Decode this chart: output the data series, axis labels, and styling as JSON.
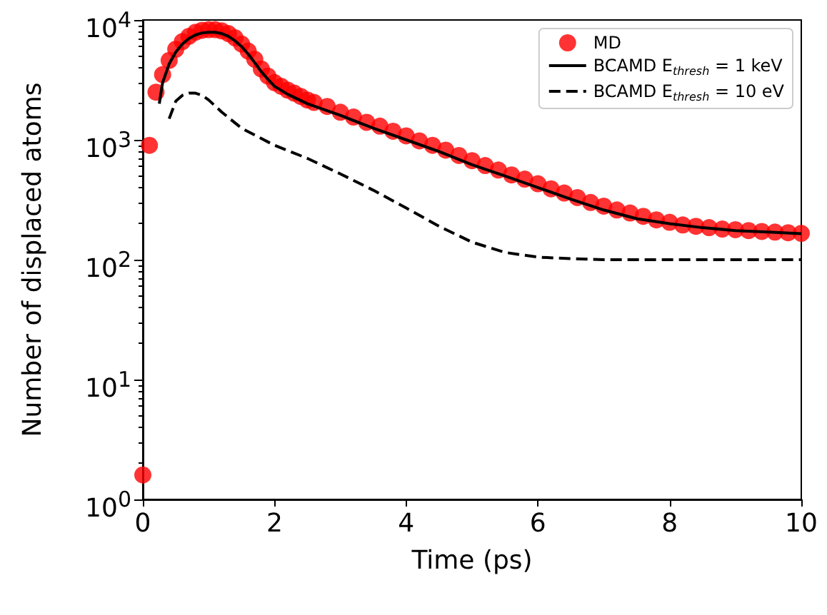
{
  "chart_data": {
    "type": "line",
    "xlabel": "Time (ps)",
    "ylabel": "Number of displaced atoms",
    "log": "y",
    "legend": "top right",
    "grid": false,
    "xlim": [
      0,
      10
    ],
    "xticks": [
      0,
      2,
      4,
      6,
      8,
      10
    ],
    "ylim": [
      1,
      10000
    ],
    "yticks": [
      {
        "value": 1,
        "label": "10$^{0}$"
      },
      {
        "value": 10,
        "label": "10$^{1}$"
      },
      {
        "value": 100,
        "label": "10$^{2}$"
      },
      {
        "value": 1000,
        "label": "10$^{3}$"
      },
      {
        "value": 10000,
        "label": "10$^{4}$"
      }
    ],
    "series": [
      {
        "name": "MD",
        "type": "scatter",
        "marker": "circle",
        "color": "#ff0000",
        "x": [
          0,
          0.1,
          0.2,
          0.3,
          0.4,
          0.5,
          0.6,
          0.7,
          0.8,
          0.9,
          1.0,
          1.1,
          1.2,
          1.3,
          1.4,
          1.5,
          1.6,
          1.7,
          1.8,
          1.9,
          2.0,
          2.1,
          2.2,
          2.3,
          2.4,
          2.5,
          2.6,
          2.8,
          3.0,
          3.2,
          3.4,
          3.6,
          3.8,
          4.0,
          4.2,
          4.4,
          4.6,
          4.8,
          5.0,
          5.2,
          5.4,
          5.6,
          5.8,
          6.0,
          6.2,
          6.4,
          6.6,
          6.8,
          7.0,
          7.2,
          7.4,
          7.6,
          7.8,
          8.0,
          8.2,
          8.4,
          8.6,
          8.8,
          9.0,
          9.2,
          9.4,
          9.6,
          9.8,
          10.0
        ],
        "values": [
          1.6,
          900,
          2500,
          3500,
          4600,
          5700,
          6600,
          7300,
          7900,
          8200,
          8300,
          8300,
          8100,
          7700,
          7100,
          6300,
          5500,
          4700,
          3900,
          3400,
          3000,
          2800,
          2600,
          2450,
          2300,
          2150,
          2050,
          1900,
          1700,
          1550,
          1400,
          1300,
          1180,
          1080,
          980,
          900,
          820,
          740,
          670,
          610,
          560,
          510,
          470,
          430,
          390,
          360,
          330,
          300,
          280,
          260,
          245,
          230,
          215,
          205,
          195,
          190,
          185,
          180,
          178,
          175,
          172,
          170,
          168,
          166
        ]
      },
      {
        "name": "BCAMD E$_{thresh}$ = 1 keV",
        "line_style": "solid",
        "color": "#000000",
        "x": [
          0.25,
          0.3,
          0.4,
          0.5,
          0.6,
          0.7,
          0.8,
          0.9,
          1.0,
          1.1,
          1.2,
          1.3,
          1.4,
          1.5,
          1.6,
          1.7,
          1.8,
          1.9,
          2.0,
          2.2,
          2.5,
          3.0,
          3.5,
          4.0,
          4.5,
          5.0,
          5.5,
          6.0,
          6.5,
          7.0,
          7.5,
          8.0,
          8.5,
          9.0,
          9.5,
          10.0
        ],
        "values": [
          2000,
          3000,
          4300,
          5400,
          6300,
          7000,
          7500,
          7800,
          7900,
          7900,
          7700,
          7300,
          6700,
          6000,
          5200,
          4400,
          3700,
          3200,
          2800,
          2400,
          2000,
          1600,
          1250,
          1000,
          800,
          620,
          500,
          400,
          320,
          260,
          220,
          200,
          185,
          175,
          170,
          165
        ]
      },
      {
        "name": "BCAMD E$_{thresh}$ = 10 eV",
        "line_style": "dashed",
        "color": "#000000",
        "x": [
          0.4,
          0.5,
          0.6,
          0.7,
          0.8,
          0.9,
          1.0,
          1.2,
          1.5,
          2.0,
          2.5,
          3.0,
          3.5,
          4.0,
          4.5,
          5.0,
          5.5,
          6.0,
          6.5,
          7.0,
          8.0,
          9.0,
          10.0
        ],
        "values": [
          1500,
          2100,
          2350,
          2450,
          2450,
          2350,
          2150,
          1700,
          1250,
          900,
          700,
          520,
          380,
          270,
          190,
          140,
          115,
          105,
          102,
          100,
          100,
          100,
          100
        ]
      }
    ]
  }
}
